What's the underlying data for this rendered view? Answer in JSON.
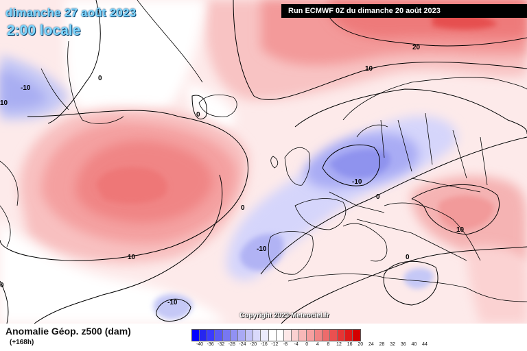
{
  "title": {
    "date": "dimanche 27 août 2023",
    "time": "2:00 locale"
  },
  "run": "Run ECMWF 0Z du dimanche 20 août 2023",
  "copyright": "Copyright 2023 Meteociel.fr",
  "parameter": "Anomalie Géop. z500 (dam)",
  "lead_time": "(+168h)",
  "legend": {
    "ticks": [
      "-40",
      "-36",
      "-32",
      "-28",
      "-24",
      "-20",
      "-16",
      "-12",
      "-8",
      "-4",
      "0",
      "4",
      "8",
      "12",
      "16",
      "20",
      "24",
      "28",
      "32",
      "36",
      "40",
      "44"
    ],
    "colors": [
      "#0000ff",
      "#2626f0",
      "#3b3bff",
      "#5a5af5",
      "#7777f2",
      "#9191f3",
      "#a9a9f5",
      "#c3c3f7",
      "#d9d9fb",
      "#ececfd",
      "#ffffff",
      "#ffffff",
      "#fde8e8",
      "#fbd1d1",
      "#f8b8b8",
      "#f5a0a0",
      "#f18585",
      "#ee6b6b",
      "#ea5050",
      "#e63535",
      "#e01919",
      "#d40000"
    ]
  },
  "contour_labels": [
    {
      "name": "contour-label-20",
      "text": "20"
    },
    {
      "name": "contour-label-10-north",
      "text": "10"
    },
    {
      "name": "contour-label-0-greenland",
      "text": "0"
    },
    {
      "name": "contour-label-m10-west",
      "text": "-10"
    },
    {
      "name": "contour-label-m10-westedge",
      "text": "10"
    },
    {
      "name": "contour-label-0-iceland",
      "text": "0"
    },
    {
      "name": "contour-label-m10-northsea",
      "text": "-10"
    },
    {
      "name": "contour-label-0-atlantic",
      "text": "0"
    },
    {
      "name": "contour-label-0-france",
      "text": "0"
    },
    {
      "name": "contour-label-10-balkans",
      "text": "10"
    },
    {
      "name": "contour-label-m10-iberia",
      "text": "-10"
    },
    {
      "name": "contour-label-10-atlantic",
      "text": "10"
    },
    {
      "name": "contour-label-0-medit",
      "text": "0"
    },
    {
      "name": "contour-label-m10-south",
      "text": "-10"
    },
    {
      "name": "contour-label-0-southwest",
      "text": "0"
    }
  ]
}
